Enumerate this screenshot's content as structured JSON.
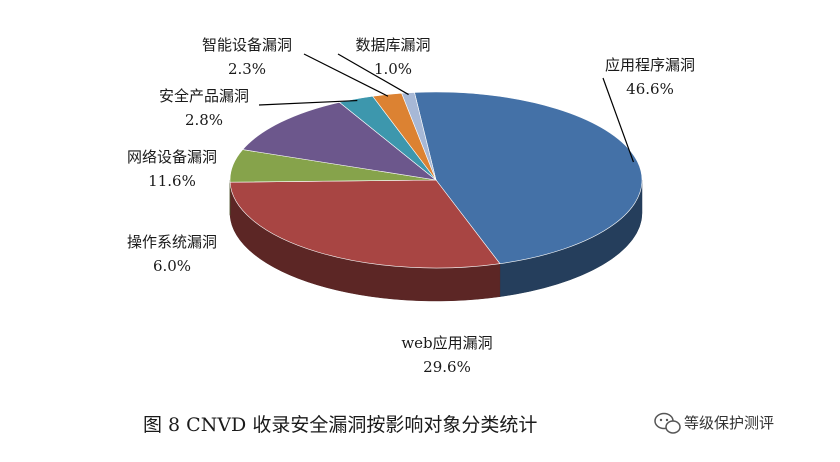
{
  "chart_data": {
    "type": "pie",
    "title": "",
    "slices": [
      {
        "label": "应用程序漏洞",
        "value": 46.6,
        "value_text": "46.6%",
        "color": "#4471a7"
      },
      {
        "label": "web应用漏洞",
        "value": 29.6,
        "value_text": "29.6%",
        "color": "#a84543"
      },
      {
        "label": "操作系统漏洞",
        "value": 6.0,
        "value_text": "6.0%",
        "color": "#86a34b"
      },
      {
        "label": "网络设备漏洞",
        "value": 11.6,
        "value_text": "11.6%",
        "color": "#6c578c"
      },
      {
        "label": "安全产品漏洞",
        "value": 2.8,
        "value_text": "2.8%",
        "color": "#3d97ad"
      },
      {
        "label": "智能设备漏洞",
        "value": 2.3,
        "value_text": "2.3%",
        "color": "#dc8232"
      },
      {
        "label": "数据库漏洞",
        "value": 1.0,
        "value_text": "1.0%",
        "color": "#a7b8d6"
      }
    ],
    "style": "3d-exploded-none",
    "legend": "none"
  },
  "caption": "图 8  CNVD 收录安全漏洞按影响对象分类统计",
  "watermark": {
    "text": "等级保护测评",
    "icon": "wechat-icon"
  }
}
